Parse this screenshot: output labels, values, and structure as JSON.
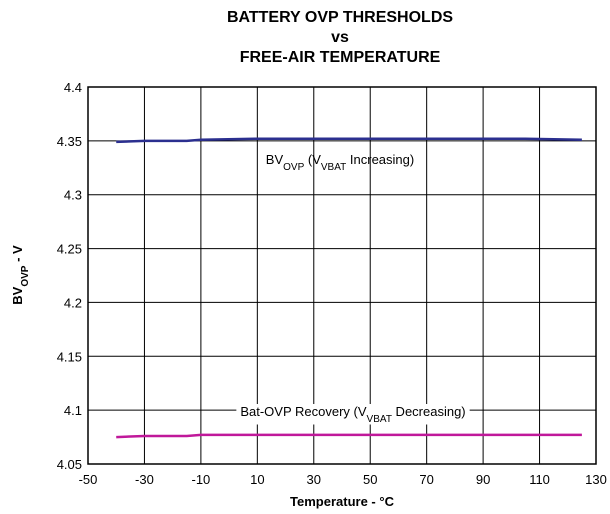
{
  "chart_data": {
    "type": "line",
    "title": [
      "BATTERY OVP THRESHOLDS",
      "vs",
      "FREE-AIR TEMPERATURE"
    ],
    "x_label": "Temperature - °C",
    "y_label": [
      {
        "text": "BV"
      },
      {
        "text": "OVP",
        "sub": true
      },
      {
        "text": " - V"
      }
    ],
    "xlim": [
      -50,
      130
    ],
    "xticks": [
      -50,
      -30,
      -10,
      10,
      30,
      50,
      70,
      90,
      110,
      130
    ],
    "ylim": [
      4.05,
      4.4
    ],
    "yticks": [
      4.4,
      4.35,
      4.3,
      4.25,
      4.2,
      4.15,
      4.1,
      4.05
    ],
    "grid": true,
    "series": [
      {
        "color": "#2b2f8f",
        "x": [
          -40,
          -30,
          -15,
          -10,
          10,
          105,
          125
        ],
        "values": [
          4.349,
          4.35,
          4.35,
          4.351,
          4.352,
          4.352,
          4.351
        ]
      },
      {
        "color": "#c0189a",
        "x": [
          -40,
          -30,
          -15,
          -10,
          125
        ],
        "values": [
          4.075,
          4.076,
          4.076,
          4.077,
          4.077
        ]
      }
    ],
    "annotations": [
      {
        "parts": [
          {
            "text": "BV"
          },
          {
            "text": "OVP",
            "sub": true
          },
          {
            "text": " (V"
          },
          {
            "text": "VBAT",
            "sub": true
          },
          {
            "text": " Increasing)"
          }
        ]
      },
      {
        "parts": [
          {
            "text": "Bat-OVP Recovery (V"
          },
          {
            "text": "VBAT",
            "sub": true
          },
          {
            "text": " Decreasing)"
          }
        ]
      }
    ]
  }
}
